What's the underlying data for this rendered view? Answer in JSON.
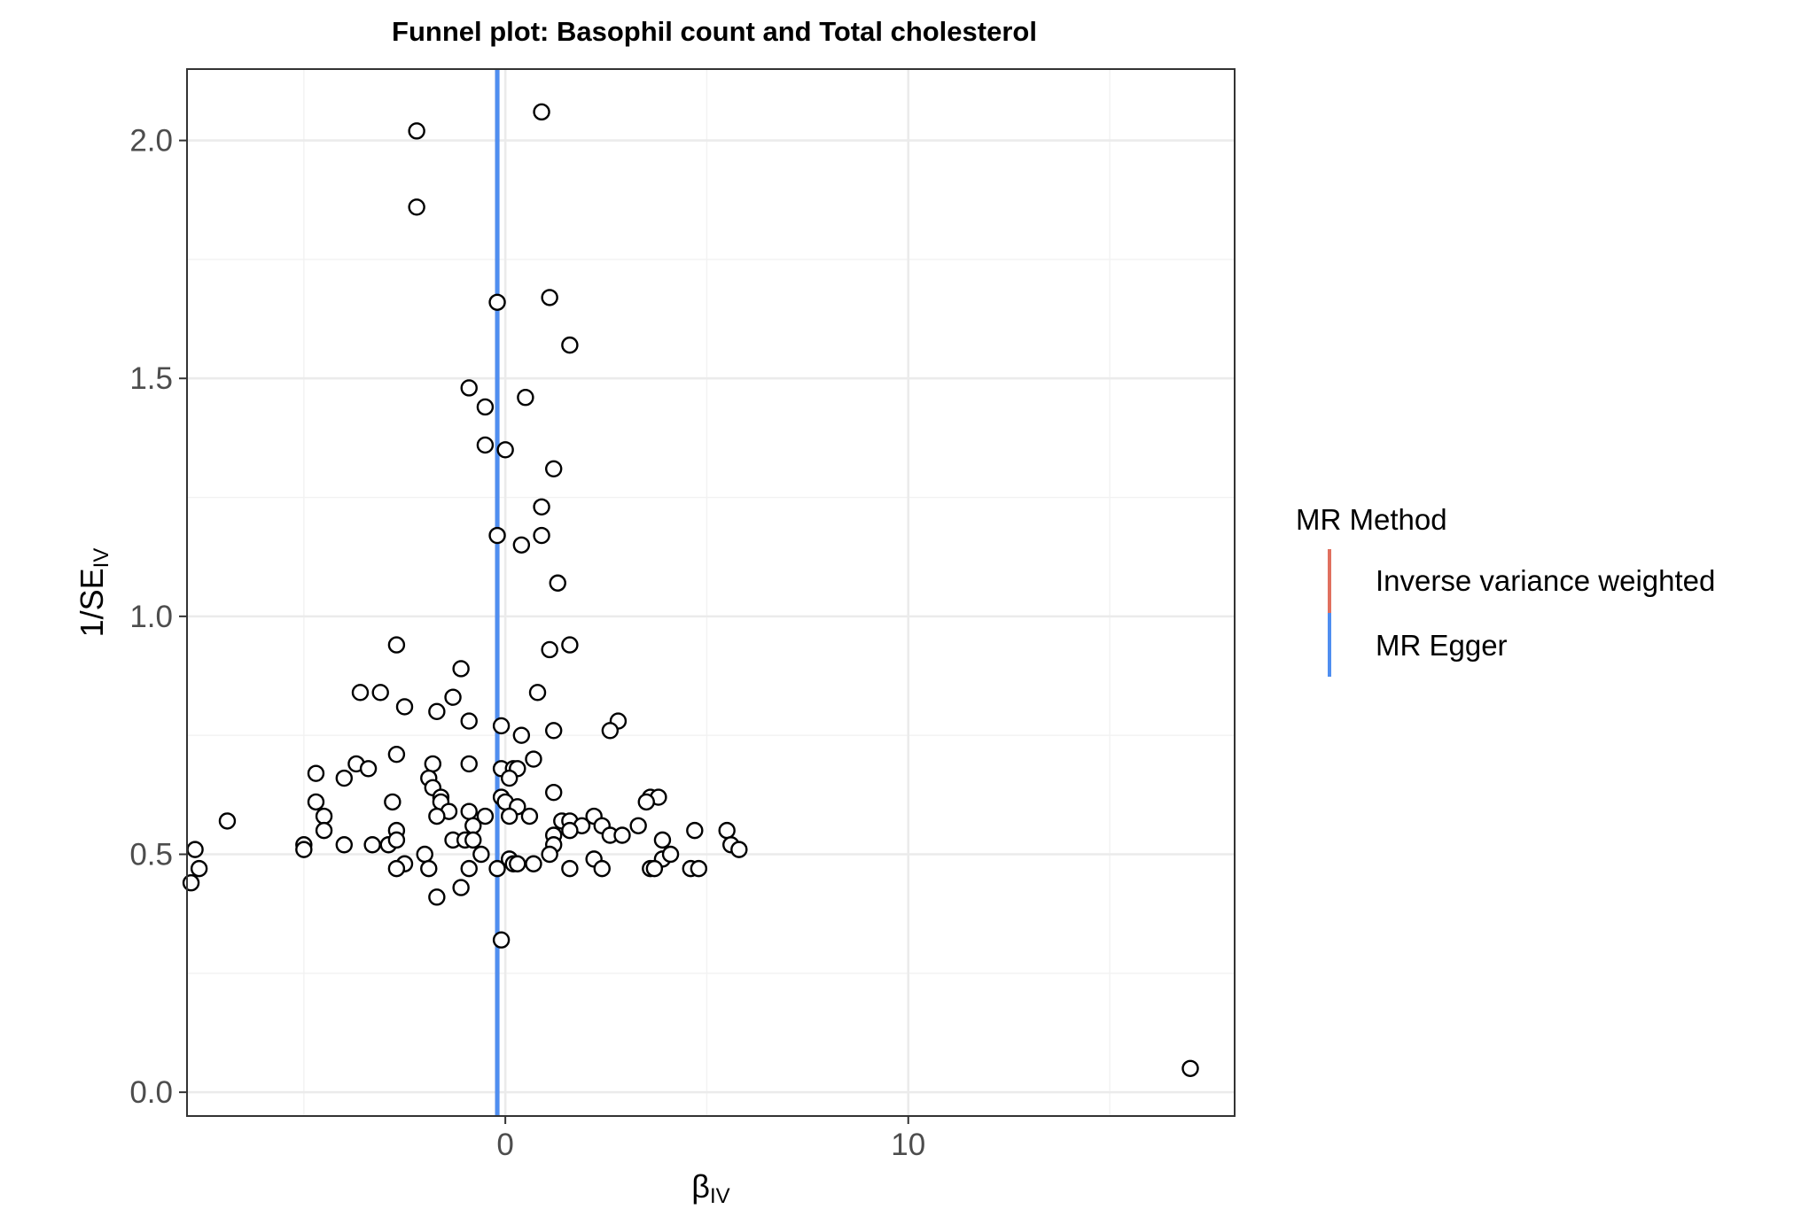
{
  "chart_data": {
    "type": "scatter",
    "title": "Funnel plot: Basophil count and Total cholesterol",
    "xlabel": {
      "main": "β",
      "sub": "IV"
    },
    "ylabel": {
      "main": "1/SE",
      "sub": "IV"
    },
    "xlim": [
      -7.9,
      18.1
    ],
    "ylim": [
      -0.05,
      2.15
    ],
    "x_ticks": [
      0,
      10
    ],
    "x_tick_labels": [
      "0",
      "10"
    ],
    "x_minor_ticks": [
      -5,
      5,
      15
    ],
    "y_ticks": [
      0.0,
      0.5,
      1.0,
      1.5,
      2.0
    ],
    "y_tick_labels": [
      "0.0",
      "0.5",
      "1.0",
      "1.5",
      "2.0"
    ],
    "y_minor_ticks": [
      0.25,
      0.75,
      1.25,
      1.75
    ],
    "grid": true,
    "legend": {
      "title": "MR Method",
      "position": "right",
      "entries": [
        {
          "label": "Inverse variance weighted",
          "color": "#E0705F"
        },
        {
          "label": "MR Egger",
          "color": "#4F8EF0"
        }
      ]
    },
    "vlines": [
      {
        "method": "Inverse variance weighted",
        "x": -0.2,
        "color": "#E0705F"
      },
      {
        "method": "MR Egger",
        "x": -0.2,
        "color": "#4F8EF0"
      }
    ],
    "points": [
      [
        -2.2,
        2.02
      ],
      [
        0.9,
        2.06
      ],
      [
        -2.2,
        1.86
      ],
      [
        -0.2,
        1.66
      ],
      [
        1.1,
        1.67
      ],
      [
        1.6,
        1.57
      ],
      [
        -0.9,
        1.48
      ],
      [
        -0.5,
        1.44
      ],
      [
        0.5,
        1.46
      ],
      [
        -0.5,
        1.36
      ],
      [
        0.0,
        1.35
      ],
      [
        1.2,
        1.31
      ],
      [
        0.9,
        1.23
      ],
      [
        0.9,
        1.17
      ],
      [
        0.4,
        1.15
      ],
      [
        -0.2,
        1.17
      ],
      [
        1.3,
        1.07
      ],
      [
        -2.7,
        0.94
      ],
      [
        1.1,
        0.93
      ],
      [
        1.6,
        0.94
      ],
      [
        -1.1,
        0.89
      ],
      [
        -3.6,
        0.84
      ],
      [
        -3.1,
        0.84
      ],
      [
        0.8,
        0.84
      ],
      [
        -2.5,
        0.81
      ],
      [
        -1.3,
        0.83
      ],
      [
        -1.7,
        0.8
      ],
      [
        -0.9,
        0.78
      ],
      [
        2.8,
        0.78
      ],
      [
        -0.1,
        0.77
      ],
      [
        1.2,
        0.76
      ],
      [
        2.6,
        0.76
      ],
      [
        0.4,
        0.75
      ],
      [
        -2.7,
        0.71
      ],
      [
        -3.7,
        0.69
      ],
      [
        -1.8,
        0.69
      ],
      [
        -0.9,
        0.69
      ],
      [
        0.7,
        0.7
      ],
      [
        -4.7,
        0.67
      ],
      [
        -3.4,
        0.68
      ],
      [
        -0.1,
        0.68
      ],
      [
        0.2,
        0.68
      ],
      [
        0.3,
        0.68
      ],
      [
        -4.0,
        0.66
      ],
      [
        -1.9,
        0.66
      ],
      [
        0.1,
        0.66
      ],
      [
        -1.8,
        0.64
      ],
      [
        -1.6,
        0.62
      ],
      [
        -0.1,
        0.62
      ],
      [
        1.2,
        0.63
      ],
      [
        3.6,
        0.62
      ],
      [
        3.8,
        0.62
      ],
      [
        -4.7,
        0.61
      ],
      [
        -2.8,
        0.61
      ],
      [
        -1.6,
        0.61
      ],
      [
        0.0,
        0.61
      ],
      [
        0.3,
        0.6
      ],
      [
        3.5,
        0.61
      ],
      [
        -4.5,
        0.58
      ],
      [
        -1.4,
        0.59
      ],
      [
        -0.9,
        0.59
      ],
      [
        -0.5,
        0.58
      ],
      [
        0.1,
        0.58
      ],
      [
        0.6,
        0.58
      ],
      [
        1.4,
        0.57
      ],
      [
        1.6,
        0.57
      ],
      [
        2.2,
        0.58
      ],
      [
        -6.9,
        0.57
      ],
      [
        -1.7,
        0.58
      ],
      [
        -0.8,
        0.56
      ],
      [
        1.9,
        0.56
      ],
      [
        2.4,
        0.56
      ],
      [
        3.3,
        0.56
      ],
      [
        -4.5,
        0.55
      ],
      [
        -2.7,
        0.55
      ],
      [
        1.2,
        0.54
      ],
      [
        1.6,
        0.55
      ],
      [
        2.6,
        0.54
      ],
      [
        2.9,
        0.54
      ],
      [
        4.7,
        0.55
      ],
      [
        5.5,
        0.55
      ],
      [
        -5.0,
        0.52
      ],
      [
        -4.0,
        0.52
      ],
      [
        -3.3,
        0.52
      ],
      [
        -2.9,
        0.52
      ],
      [
        -2.7,
        0.53
      ],
      [
        -1.3,
        0.53
      ],
      [
        -1.0,
        0.53
      ],
      [
        -0.8,
        0.53
      ],
      [
        3.9,
        0.53
      ],
      [
        5.6,
        0.52
      ],
      [
        5.8,
        0.51
      ],
      [
        -7.7,
        0.51
      ],
      [
        -5.0,
        0.51
      ],
      [
        1.2,
        0.52
      ],
      [
        -2.0,
        0.5
      ],
      [
        -0.6,
        0.5
      ],
      [
        0.1,
        0.49
      ],
      [
        1.1,
        0.5
      ],
      [
        2.2,
        0.49
      ],
      [
        3.9,
        0.49
      ],
      [
        4.1,
        0.5
      ],
      [
        -2.5,
        0.48
      ],
      [
        -2.7,
        0.47
      ],
      [
        -1.9,
        0.47
      ],
      [
        -0.9,
        0.47
      ],
      [
        -0.2,
        0.47
      ],
      [
        0.2,
        0.48
      ],
      [
        0.3,
        0.48
      ],
      [
        0.7,
        0.48
      ],
      [
        1.6,
        0.47
      ],
      [
        2.4,
        0.47
      ],
      [
        3.6,
        0.47
      ],
      [
        3.7,
        0.47
      ],
      [
        4.6,
        0.47
      ],
      [
        4.8,
        0.47
      ],
      [
        -7.6,
        0.47
      ],
      [
        -7.8,
        0.44
      ],
      [
        -1.1,
        0.43
      ],
      [
        -1.7,
        0.41
      ],
      [
        -0.1,
        0.32
      ],
      [
        17.0,
        0.05
      ]
    ]
  }
}
